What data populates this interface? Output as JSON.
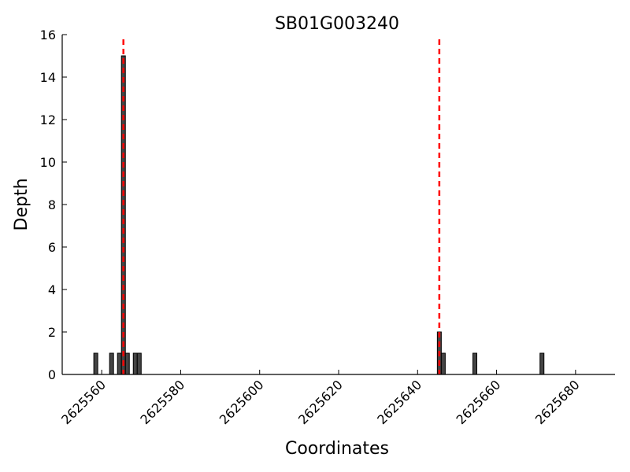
{
  "chart_data": {
    "type": "bar",
    "title": "SB01G003240",
    "xlabel": "Coordinates",
    "ylabel": "Depth",
    "xlim": [
      2625550,
      2625690
    ],
    "ylim": [
      0,
      16
    ],
    "xticks": [
      2625560,
      2625580,
      2625600,
      2625620,
      2625640,
      2625660,
      2625680
    ],
    "xtick_labels": [
      "2625560",
      "2625580",
      "2625600",
      "2625620",
      "2625640",
      "2625660",
      "2625680"
    ],
    "yticks": [
      0,
      2,
      4,
      6,
      8,
      10,
      12,
      14,
      16
    ],
    "ytick_labels": [
      "0",
      "2",
      "4",
      "6",
      "8",
      "10",
      "12",
      "14",
      "16"
    ],
    "bar_width": 1,
    "bar_color": "#444444",
    "x": [
      2625558,
      2625562,
      2625564,
      2625565,
      2625566,
      2625568,
      2625569,
      2625645,
      2625646,
      2625654,
      2625671
    ],
    "values": [
      1,
      1,
      1,
      15,
      1,
      1,
      1,
      2,
      1,
      1,
      1
    ],
    "reference_lines": [
      2625565.5,
      2625645.5
    ],
    "reference_line_color": "#ff0000",
    "grid": false
  }
}
